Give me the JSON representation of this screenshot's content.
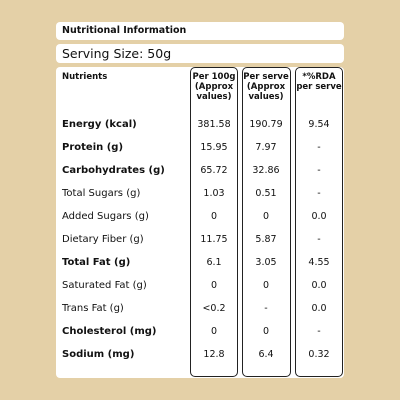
{
  "header": {
    "title": "Nutritional Information",
    "serving": "Serving Size: 50g"
  },
  "table": {
    "columns": [
      "Nutrients",
      "Per 100g (Approx values)",
      "Per serve (Approx values)",
      "*%RDA per serve"
    ],
    "rows": [
      {
        "cells": [
          "Energy (kcal)",
          "381.58",
          "190.79",
          "9.54"
        ],
        "bold": true
      },
      {
        "cells": [
          "Protein (g)",
          "15.95",
          "7.97",
          "-"
        ],
        "bold": true
      },
      {
        "cells": [
          "Carbohydrates (g)",
          "65.72",
          "32.86",
          "-"
        ],
        "bold": true
      },
      {
        "cells": [
          "Total Sugars (g)",
          "1.03",
          "0.51",
          "-"
        ],
        "bold": false
      },
      {
        "cells": [
          "Added Sugars (g)",
          "0",
          "0",
          "0.0"
        ],
        "bold": false
      },
      {
        "cells": [
          "Dietary Fiber (g)",
          "11.75",
          "5.87",
          "-"
        ],
        "bold": false
      },
      {
        "cells": [
          "Total Fat (g)",
          "6.1",
          "3.05",
          "4.55"
        ],
        "bold": true
      },
      {
        "cells": [
          "Saturated Fat (g)",
          "0",
          "0",
          "0.0"
        ],
        "bold": false
      },
      {
        "cells": [
          "Trans Fat (g)",
          "<0.2",
          "-",
          "0.0"
        ],
        "bold": false
      },
      {
        "cells": [
          "Cholesterol (mg)",
          "0",
          "0",
          "-"
        ],
        "bold": true
      },
      {
        "cells": [
          "Sodium (mg)",
          "12.8",
          "6.4",
          "0.32"
        ],
        "bold": true
      }
    ]
  }
}
